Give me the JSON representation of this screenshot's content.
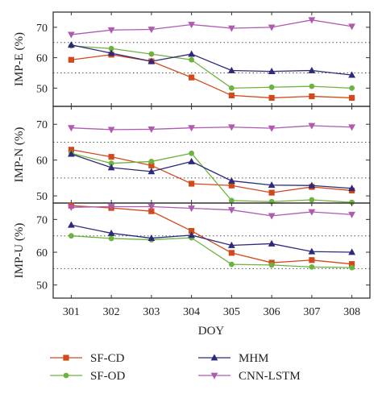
{
  "chart_data": {
    "type": "line",
    "x": [
      301,
      302,
      303,
      304,
      305,
      306,
      307,
      308
    ],
    "xlabel": "DOY",
    "xlim": [
      300.55,
      308.45
    ],
    "legend": {
      "placement": "bottom",
      "entries": [
        "SF-CD",
        "SF-OD",
        "MHM",
        "CNN-LSTM"
      ]
    },
    "series_styles": [
      {
        "name": "SF-CD",
        "color": "#d24a1c",
        "marker": "square"
      },
      {
        "name": "SF-OD",
        "color": "#6db33f",
        "marker": "circle"
      },
      {
        "name": "MHM",
        "color": "#2e2a7a",
        "marker": "triangle-up"
      },
      {
        "name": "CNN-LSTM",
        "color": "#b05ab0",
        "marker": "triangle-down"
      }
    ],
    "panels": [
      {
        "ylabel": "IMP-E (%)",
        "ylim": [
          44,
          75
        ],
        "yticks": [
          50,
          60,
          70
        ],
        "series": [
          {
            "name": "SF-CD",
            "values": [
              59.3,
              61.0,
              58.8,
              53.5,
              47.6,
              46.8,
              47.3,
              46.8
            ]
          },
          {
            "name": "SF-OD",
            "values": [
              63.9,
              63.0,
              61.2,
              59.3,
              50.0,
              50.3,
              50.6,
              50.0
            ]
          },
          {
            "name": "MHM",
            "values": [
              64.2,
              61.5,
              58.8,
              61.2,
              55.8,
              55.5,
              55.8,
              54.3
            ]
          },
          {
            "name": "CNN-LSTM",
            "values": [
              67.6,
              69.1,
              69.3,
              70.9,
              69.7,
              70.0,
              72.4,
              70.3
            ]
          }
        ],
        "hlines": [
          55,
          65
        ]
      },
      {
        "ylabel": "IMP-N (%)",
        "ylim": [
          48,
          75
        ],
        "yticks": [
          50,
          60,
          70
        ],
        "series": [
          {
            "name": "SF-CD",
            "values": [
              62.9,
              60.9,
              58.5,
              53.4,
              52.9,
              50.9,
              52.5,
              51.5
            ]
          },
          {
            "name": "SF-OD",
            "values": [
              61.9,
              59.1,
              59.6,
              61.9,
              48.7,
              48.4,
              48.9,
              48.2
            ]
          },
          {
            "name": "MHM",
            "values": [
              61.7,
              57.9,
              56.8,
              59.6,
              54.2,
              53.0,
              52.9,
              52.1
            ]
          },
          {
            "name": "CNN-LSTM",
            "values": [
              69.0,
              68.5,
              68.6,
              69.0,
              69.2,
              68.9,
              69.6,
              69.2
            ]
          }
        ],
        "hlines": [
          55,
          65
        ]
      },
      {
        "ylabel": "IMP-U (%)",
        "ylim": [
          46,
          75
        ],
        "yticks": [
          50,
          60,
          70
        ],
        "series": [
          {
            "name": "SF-CD",
            "values": [
              74.2,
              73.5,
              72.5,
              66.5,
              59.8,
              56.8,
              57.6,
              56.4
            ]
          },
          {
            "name": "SF-OD",
            "values": [
              65.0,
              64.2,
              63.8,
              64.4,
              56.3,
              56.1,
              55.5,
              55.3
            ]
          },
          {
            "name": "MHM",
            "values": [
              68.3,
              65.8,
              64.3,
              65.2,
              62.1,
              62.6,
              60.2,
              60.0
            ]
          },
          {
            "name": "CNN-LSTM",
            "values": [
              73.7,
              73.9,
              73.9,
              73.4,
              72.9,
              71.1,
              72.3,
              71.5
            ]
          }
        ],
        "hlines": [
          55,
          65
        ]
      }
    ]
  }
}
